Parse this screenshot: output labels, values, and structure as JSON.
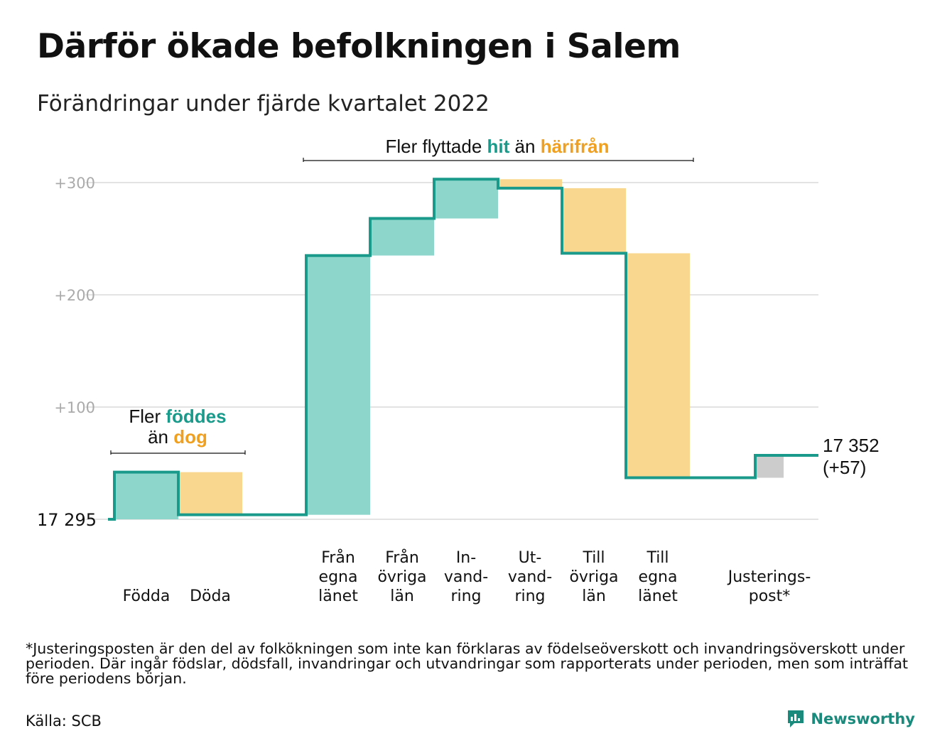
{
  "title": "Därför ökade befolkningen i Salem",
  "subtitle": "Förändringar under fjärde kvartalet 2022",
  "colors": {
    "increase": "#8dd6cc",
    "decrease": "#fad78e",
    "adjustment": "#cccccc",
    "line": "#1a9a8a",
    "grid": "#e3e3e3",
    "tick_text": "#aaaaaa"
  },
  "annotations": {
    "migration": {
      "prefix": "Fler flyttade ",
      "in_word": "hit",
      "middle": " än ",
      "out_word": "härifrån"
    },
    "births": {
      "line1_prefix": "Fler ",
      "line1_word": "föddes",
      "line2_prefix": "än ",
      "line2_word": "dog"
    }
  },
  "chart_data": {
    "type": "waterfall",
    "title": "Därför ökade befolkningen i Salem",
    "subtitle": "Förändringar under fjärde kvartalet 2022",
    "start_value": 17295,
    "start_label": "17 295",
    "end_value": 17352,
    "end_label": "17 352",
    "end_change_label": "(+57)",
    "y_ticks": [
      {
        "value": 100,
        "label": "+100"
      },
      {
        "value": 200,
        "label": "+200"
      },
      {
        "value": 300,
        "label": "+300"
      }
    ],
    "ylim": [
      0,
      300
    ],
    "grid": true,
    "steps": [
      {
        "label_lines": [
          "Födda"
        ],
        "value": 42,
        "kind": "increase"
      },
      {
        "label_lines": [
          "Döda"
        ],
        "value": -38,
        "kind": "decrease"
      },
      {
        "label_lines": [
          "Från",
          "egna",
          "länet"
        ],
        "value": 231,
        "kind": "increase"
      },
      {
        "label_lines": [
          "Från",
          "övriga",
          "län"
        ],
        "value": 33,
        "kind": "increase"
      },
      {
        "label_lines": [
          "In-",
          "vand-",
          "ring"
        ],
        "value": 35,
        "kind": "increase"
      },
      {
        "label_lines": [
          "Ut-",
          "vand-",
          "ring"
        ],
        "value": -8,
        "kind": "decrease"
      },
      {
        "label_lines": [
          "Till",
          "övriga",
          "län"
        ],
        "value": -58,
        "kind": "decrease"
      },
      {
        "label_lines": [
          "Till",
          "egna",
          "länet"
        ],
        "value": -200,
        "kind": "decrease"
      },
      {
        "label_lines": [
          "Justerings-",
          "post*"
        ],
        "value": 20,
        "kind": "adjustment"
      }
    ]
  },
  "footnote": "*Justeringsposten är den del av folkökningen som inte kan förklaras av födelseöverskott och invandringsöverskott under perioden. Där ingår födslar, dödsfall, invandringar och utvandringar som rapporterats under perioden, men som inträffat före periodens början.",
  "source": "Källa: SCB",
  "brand": {
    "name": "Newsworthy",
    "icon": "newsworthy-logo-icon"
  }
}
